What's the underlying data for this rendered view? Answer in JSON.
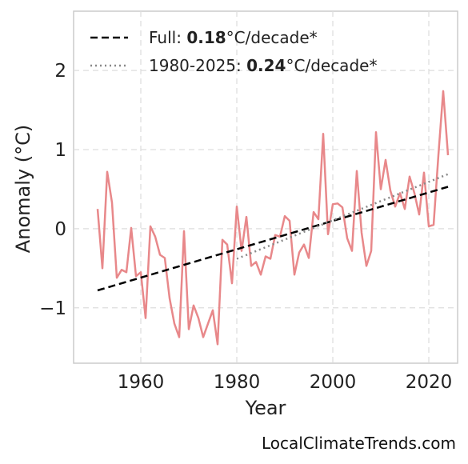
{
  "chart_data": {
    "type": "line",
    "xlabel": "Year",
    "ylabel": "Anomaly (°C)",
    "xlim": [
      1946,
      2026
    ],
    "ylim": [
      -1.7,
      2.75
    ],
    "xticks": [
      1960,
      1980,
      2000,
      2020
    ],
    "yticks": [
      2,
      1,
      0,
      -1
    ],
    "ytick_labels": [
      "2",
      "1",
      "0",
      "−1"
    ],
    "grid": true,
    "legend_position": "top-left",
    "series": [
      {
        "style": "line",
        "color": "#e8888a",
        "x": [
          1951,
          1952,
          1953,
          1954,
          1955,
          1956,
          1957,
          1958,
          1959,
          1960,
          1961,
          1962,
          1963,
          1964,
          1965,
          1966,
          1967,
          1968,
          1969,
          1970,
          1971,
          1972,
          1973,
          1974,
          1975,
          1976,
          1977,
          1978,
          1979,
          1980,
          1981,
          1982,
          1983,
          1984,
          1985,
          1986,
          1987,
          1988,
          1989,
          1990,
          1991,
          1992,
          1993,
          1994,
          1995,
          1996,
          1997,
          1998,
          1999,
          2000,
          2001,
          2002,
          2003,
          2004,
          2005,
          2006,
          2007,
          2008,
          2009,
          2010,
          2011,
          2012,
          2013,
          2014,
          2015,
          2016,
          2017,
          2018,
          2019,
          2020,
          2021,
          2022,
          2023,
          2024
        ],
        "y": [
          0.25,
          -0.5,
          0.72,
          0.33,
          -0.62,
          -0.52,
          -0.55,
          0.01,
          -0.6,
          -0.55,
          -1.13,
          0.03,
          -0.1,
          -0.33,
          -0.37,
          -0.88,
          -1.2,
          -1.37,
          -0.03,
          -1.27,
          -0.97,
          -1.13,
          -1.37,
          -1.2,
          -1.03,
          -1.46,
          -0.14,
          -0.2,
          -0.69,
          0.28,
          -0.28,
          0.15,
          -0.47,
          -0.42,
          -0.58,
          -0.35,
          -0.38,
          -0.08,
          -0.1,
          0.16,
          0.1,
          -0.58,
          -0.3,
          -0.2,
          -0.37,
          0.21,
          0.12,
          1.2,
          -0.07,
          0.31,
          0.32,
          0.27,
          -0.12,
          -0.28,
          0.73,
          -0.05,
          -0.47,
          -0.28,
          1.22,
          0.5,
          0.87,
          0.48,
          0.28,
          0.45,
          0.25,
          0.66,
          0.45,
          0.18,
          0.71,
          0.03,
          0.05,
          0.93,
          1.74,
          0.93
        ]
      },
      {
        "name": "Full",
        "rate": "0.18",
        "unit": "°C/decade*",
        "style": "dashed",
        "color": "#000000",
        "x": [
          1951,
          2024
        ],
        "y": [
          -0.78,
          0.53
        ]
      },
      {
        "name": "1980-2025",
        "rate": "0.24",
        "unit": "°C/decade*",
        "style": "dotted",
        "color": "#888888",
        "x": [
          1980,
          2024
        ],
        "y": [
          -0.38,
          0.69
        ]
      }
    ]
  },
  "credit": "LocalClimateTrends.com"
}
